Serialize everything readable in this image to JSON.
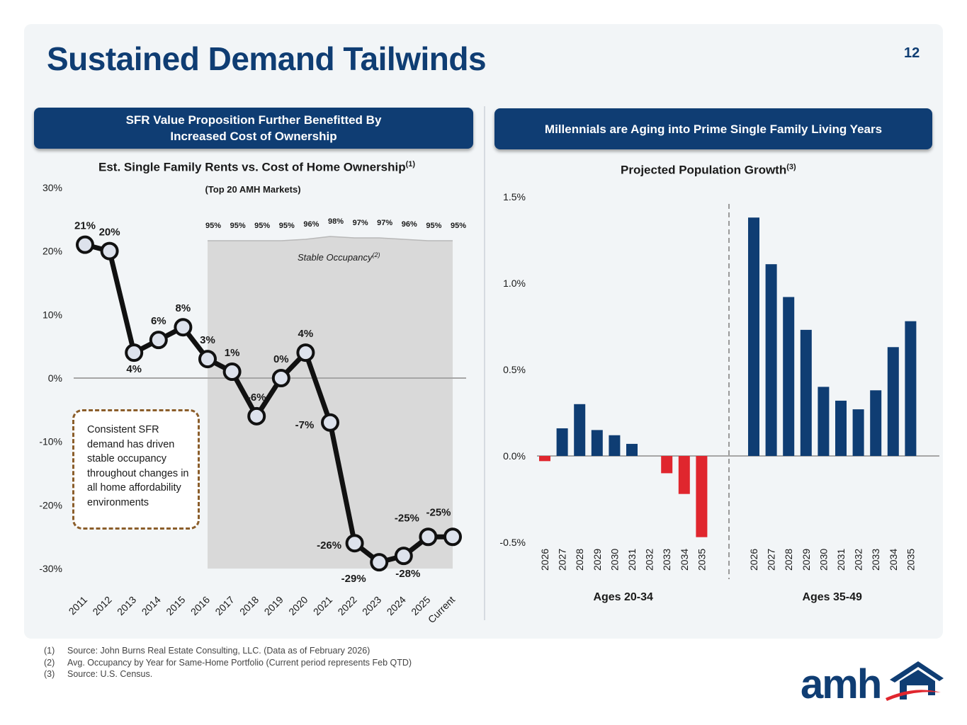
{
  "page": {
    "title": "Sustained Demand Tailwinds",
    "page_number": "12",
    "left_banner": {
      "line1": "SFR Value Proposition Further Benefitted By",
      "line2": "Increased Cost of Ownership"
    },
    "right_banner": "Millennials are Aging into Prime Single Family Living Years",
    "callout": "Consistent SFR demand has driven stable occupancy throughout changes in all home affordability environments",
    "footnotes": [
      {
        "num": "(1)",
        "text": "Source: John Burns Real Estate Consulting, LLC. (Data as of February 2026)"
      },
      {
        "num": "(2)",
        "text": "Avg. Occupancy by Year for Same-Home Portfolio (Current period represents Feb QTD)"
      },
      {
        "num": "(3)",
        "text": "Source: U.S. Census."
      }
    ],
    "logo_text": "amh",
    "colors": {
      "navy": "#0f3d73",
      "red": "#e0262e",
      "panel": "#f2f5f7",
      "callout_border": "#8b5e2b"
    }
  },
  "chart_data": [
    {
      "type": "line",
      "title": "Est. Single Family Rents vs. Cost of Home Ownership",
      "title_sup": "(1)",
      "subtitle": "(Top 20 AMH Markets)",
      "categories": [
        "2011",
        "2012",
        "2013",
        "2014",
        "2015",
        "2016",
        "2017",
        "2018",
        "2019",
        "2020",
        "2021",
        "2022",
        "2023",
        "2024",
        "2025",
        "Current"
      ],
      "values": [
        21,
        20,
        4,
        6,
        8,
        3,
        1,
        -6,
        0,
        4,
        -7,
        -26,
        -29,
        -28,
        -25,
        -25
      ],
      "point_labels": [
        "21%",
        "20%",
        "4%",
        "6%",
        "8%",
        "3%",
        "1%",
        "-6%",
        "0%",
        "4%",
        "-7%",
        "-26%",
        "-29%",
        "-28%",
        "-25%",
        "-25%"
      ],
      "ylim": [
        -30,
        30
      ],
      "yticks": [
        30,
        20,
        10,
        0,
        -10,
        -20,
        -30
      ],
      "ytick_labels": [
        "30%",
        "20%",
        "10%",
        "0%",
        "-10%",
        "-20%",
        "-30%"
      ],
      "occupancy": {
        "label": "Stable Occupancy",
        "label_sup": "(2)",
        "categories": [
          "2016",
          "2017",
          "2018",
          "2019",
          "2020",
          "2021",
          "2022",
          "2023",
          "2024",
          "2025",
          "Current"
        ],
        "values": [
          95,
          95,
          95,
          95,
          96,
          98,
          97,
          97,
          96,
          95,
          95
        ],
        "labels": [
          "95%",
          "95%",
          "95%",
          "95%",
          "96%",
          "98%",
          "97%",
          "97%",
          "96%",
          "95%",
          "95%"
        ]
      }
    },
    {
      "type": "bar",
      "title": "Projected Population Growth",
      "title_sup": "(3)",
      "ylim": [
        -0.5,
        1.5
      ],
      "yticks": [
        1.5,
        1.0,
        0.5,
        0.0,
        -0.5
      ],
      "ytick_labels": [
        "1.5%",
        "1.0%",
        "0.5%",
        "0.0%",
        "-0.5%"
      ],
      "series": [
        {
          "name": "Ages 20-34",
          "categories": [
            "2026",
            "2027",
            "2028",
            "2029",
            "2030",
            "2031",
            "2032",
            "2033",
            "2034",
            "2035"
          ],
          "values": [
            -0.03,
            0.16,
            0.3,
            0.15,
            0.12,
            0.07,
            0.0,
            -0.1,
            -0.22,
            -0.47
          ]
        },
        {
          "name": "Ages 35-49",
          "categories": [
            "2026",
            "2027",
            "2028",
            "2029",
            "2030",
            "2031",
            "2032",
            "2033",
            "2034",
            "2035"
          ],
          "values": [
            1.38,
            1.11,
            0.92,
            0.73,
            0.4,
            0.32,
            0.27,
            0.38,
            0.63,
            0.78
          ]
        }
      ]
    }
  ]
}
